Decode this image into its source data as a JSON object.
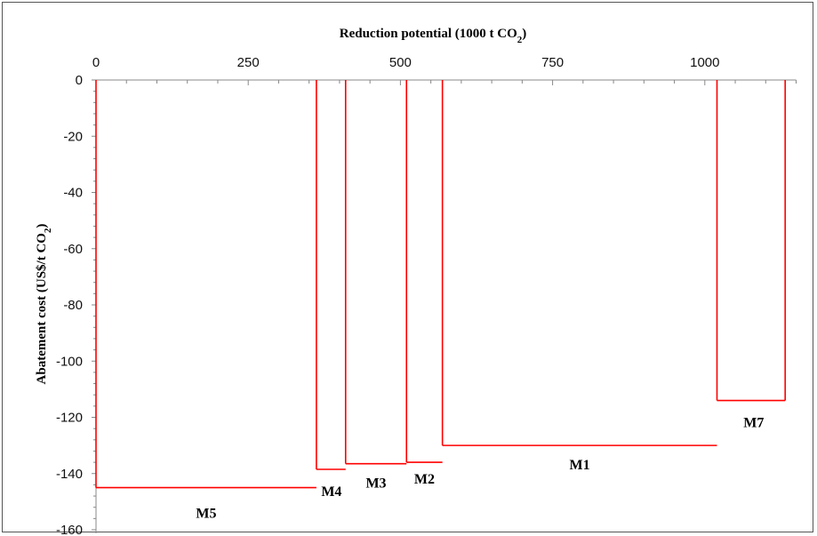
{
  "chart_data": {
    "type": "step",
    "title": "",
    "xlabel": "Reduction potential (1000 t CO2)",
    "xlabel_main": "Reduction potential (1000 t CO",
    "xlabel_sub": "2",
    "xlabel_end": ")",
    "ylabel": "Abatement cost (US$/t CO2)",
    "ylabel_main": "Abatement cost  (US$/t CO",
    "ylabel_sub": "2",
    "ylabel_end": ")",
    "xlim": [
      0,
      1150
    ],
    "ylim": [
      -160,
      0
    ],
    "x_axis_position": "top",
    "x_ticks": [
      0,
      250,
      500,
      750,
      1000
    ],
    "y_ticks": [
      0,
      -20,
      -40,
      -60,
      -80,
      -100,
      -120,
      -140,
      -160
    ],
    "series_color": "#ff0000",
    "segments": [
      {
        "label": "M5",
        "x_start": 0,
        "x_end": 362,
        "cost": -145
      },
      {
        "label": "M4",
        "x_start": 362,
        "x_end": 410,
        "cost": -138.5
      },
      {
        "label": "M3",
        "x_start": 410,
        "x_end": 510,
        "cost": -136.5
      },
      {
        "label": "M2",
        "x_start": 510,
        "x_end": 569,
        "cost": -136
      },
      {
        "label": "M1",
        "x_start": 569,
        "x_end": 1020,
        "cost": -130
      },
      {
        "label": "M7",
        "x_start": 1020,
        "x_end": 1132,
        "cost": -114
      }
    ]
  }
}
